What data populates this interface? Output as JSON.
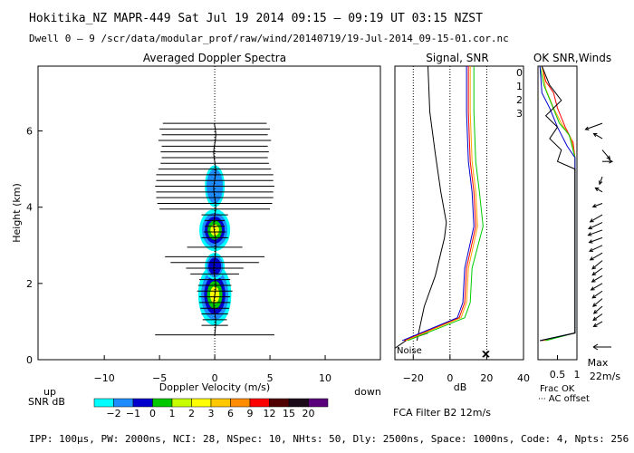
{
  "header": {
    "line1": "Hokitika_NZ   MAPR-449   Sat Jul 19 2014 09:15 — 09:19 UT 03:15 NZST",
    "line2": "Dwell   0 —  9    /scr/data/modular_prof/raw/wind/20140719/19-Jul-2014_09-15-01.cor.nc"
  },
  "footer": {
    "params": "IPP: 100μs,  PW: 2000ns,  NCI:  28,  NSpec: 10,  NHts: 50,  Dly: 2500ns,  Space: 1000ns,  Code: 4,  Npts: 256",
    "filter": "FCA Filter B2 12m/s"
  },
  "colors": {
    "snr_levels": [
      "#00ffff",
      "#1e8cff",
      "#0000cd",
      "#00c800",
      "#c8ff00",
      "#ffff00",
      "#ffc800",
      "#ff8c00",
      "#ff0000",
      "#500000",
      "#1a0a1a",
      "#5a007a"
    ],
    "channels": [
      "#ff0000",
      "#ffa500",
      "#00cc00",
      "#0000cc"
    ]
  },
  "chart_data": [
    {
      "type": "heatmap",
      "title": "Averaged Doppler Spectra",
      "xlabel": "Doppler Velocity (m/s)",
      "ylabel": "Height (km)",
      "xlim": [
        -16,
        15
      ],
      "ylim": [
        0,
        7.7
      ],
      "xticks": [
        "−10",
        "−5",
        "0",
        "5",
        "10"
      ],
      "xtick_values": [
        -10,
        -5,
        0,
        5,
        10
      ],
      "yticks": [
        "0",
        "2",
        "4",
        "6"
      ],
      "ytick_values": [
        0,
        2,
        4,
        6
      ],
      "dir_left": "up",
      "dir_right": "down",
      "colorbar_title": "SNR dB",
      "colorbar_labels": [
        "−2",
        "−1",
        "0",
        "1",
        "2",
        "3",
        "6",
        "9",
        "12",
        "15",
        "20"
      ],
      "spectral_width_bars": [
        {
          "h": 0.65,
          "w": 5.4
        },
        {
          "h": 0.9,
          "w": 1.2
        },
        {
          "h": 1.05,
          "w": 1.1
        },
        {
          "h": 1.2,
          "w": 1.2
        },
        {
          "h": 1.35,
          "w": 1.3
        },
        {
          "h": 1.5,
          "w": 1.4
        },
        {
          "h": 1.65,
          "w": 1.4
        },
        {
          "h": 1.8,
          "w": 1.6
        },
        {
          "h": 1.95,
          "w": 1.5
        },
        {
          "h": 2.1,
          "w": 1.4
        },
        {
          "h": 2.25,
          "w": 2.2
        },
        {
          "h": 2.4,
          "w": 2.6
        },
        {
          "h": 2.55,
          "w": 4.0
        },
        {
          "h": 2.7,
          "w": 4.5
        },
        {
          "h": 2.95,
          "w": 2.5
        },
        {
          "h": 3.2,
          "w": 1.2
        },
        {
          "h": 3.35,
          "w": 1.0
        },
        {
          "h": 3.5,
          "w": 0.9
        },
        {
          "h": 3.65,
          "w": 0.9
        },
        {
          "h": 3.8,
          "w": 1.2
        },
        {
          "h": 3.95,
          "w": 5.0
        },
        {
          "h": 4.1,
          "w": 5.2
        },
        {
          "h": 4.25,
          "w": 5.3
        },
        {
          "h": 4.4,
          "w": 5.3
        },
        {
          "h": 4.55,
          "w": 5.4
        },
        {
          "h": 4.7,
          "w": 5.3
        },
        {
          "h": 4.85,
          "w": 5.3
        },
        {
          "h": 5.0,
          "w": 5.1
        },
        {
          "h": 5.15,
          "w": 4.9
        },
        {
          "h": 5.3,
          "w": 4.8
        },
        {
          "h": 5.45,
          "w": 4.9
        },
        {
          "h": 5.6,
          "w": 4.8
        },
        {
          "h": 5.75,
          "w": 5.1
        },
        {
          "h": 5.9,
          "w": 4.8
        },
        {
          "h": 6.05,
          "w": 5.0
        },
        {
          "h": 6.2,
          "w": 4.7
        }
      ]
    },
    {
      "type": "line",
      "title": "Signal, SNR",
      "xlabel": "dB",
      "xlim": [
        -30,
        40
      ],
      "ylim": [
        0,
        7.7
      ],
      "xticks": [
        "−20",
        "0",
        "20",
        "40"
      ],
      "xtick_values": [
        -20,
        0,
        20,
        40
      ],
      "dotted_lines_x": [
        -20,
        0,
        20
      ],
      "noise_label": "Noise",
      "series": [
        {
          "name": "Noise",
          "color": "#000000",
          "x": [
            -30,
            -24,
            -18,
            -12
          ],
          "y": [
            0.3,
            0.5,
            0.6,
            0.7
          ]
        },
        {
          "name": "Signal",
          "color": "#000000",
          "x": [
            -18,
            -14,
            -8,
            -3,
            -2,
            -5,
            -8,
            -11,
            -12
          ],
          "y": [
            0.5,
            1.4,
            2.2,
            3.2,
            3.6,
            4.4,
            5.4,
            6.5,
            7.7
          ]
        },
        {
          "name": "0",
          "color": "#ff0000",
          "x": [
            -25,
            5,
            8,
            9,
            14,
            13,
            11,
            10,
            10
          ],
          "y": [
            0.5,
            1.1,
            1.5,
            2.4,
            3.5,
            4.4,
            5.2,
            6.5,
            7.7
          ]
        },
        {
          "name": "1",
          "color": "#ffa500",
          "x": [
            -24,
            6,
            9,
            10,
            15,
            14,
            12,
            11,
            11
          ],
          "y": [
            0.5,
            1.1,
            1.5,
            2.4,
            3.5,
            4.4,
            5.2,
            6.5,
            7.7
          ]
        },
        {
          "name": "2",
          "color": "#00cc00",
          "x": [
            -23,
            8,
            11,
            12,
            18,
            16,
            14,
            13,
            13
          ],
          "y": [
            0.5,
            1.1,
            1.5,
            2.4,
            3.5,
            4.4,
            5.2,
            6.5,
            7.7
          ]
        },
        {
          "name": "3",
          "color": "#0000cc",
          "x": [
            -26,
            4,
            7,
            8,
            13,
            12,
            10,
            9,
            9
          ],
          "y": [
            0.5,
            1.1,
            1.5,
            2.4,
            3.5,
            4.4,
            5.2,
            6.5,
            7.7
          ]
        }
      ],
      "marker_x": "×"
    },
    {
      "type": "line",
      "title": "OK SNR,Winds",
      "xlabel": "Frac OK",
      "xlim": [
        0,
        1
      ],
      "ylim": [
        0,
        7.7
      ],
      "xticks": [
        "0.5",
        "1"
      ],
      "xtick_values": [
        0.5,
        1
      ],
      "legend": [
        "0",
        "1",
        "2",
        "3"
      ],
      "note": "AC offset",
      "max_label": "Max",
      "max_value": "22m/s",
      "frac_ok_lines": [
        {
          "name": "0",
          "color": "#ff0000",
          "x": [
            0.1,
            0.95,
            0.95,
            0.9,
            0.7,
            0.5,
            0.4,
            0.2,
            0.1
          ],
          "y": [
            0.5,
            0.7,
            5.3,
            5.7,
            6.1,
            6.6,
            7.0,
            7.3,
            7.7
          ]
        },
        {
          "name": "1",
          "color": "#ffa500",
          "x": [
            0.15,
            0.95,
            0.95,
            0.85,
            0.6,
            0.4,
            0.2,
            0.1
          ],
          "y": [
            0.5,
            0.7,
            5.3,
            5.8,
            6.2,
            6.6,
            7.1,
            7.7
          ]
        },
        {
          "name": "2",
          "color": "#00cc00",
          "x": [
            0.2,
            0.95,
            0.95,
            0.8,
            0.55,
            0.35,
            0.15,
            0.05
          ],
          "y": [
            0.5,
            0.7,
            5.3,
            5.9,
            6.2,
            6.7,
            7.2,
            7.7
          ]
        },
        {
          "name": "3",
          "color": "#0000cc",
          "x": [
            0.05,
            0.95,
            0.95,
            0.75,
            0.5,
            0.3,
            0.1,
            0.05
          ],
          "y": [
            0.5,
            0.7,
            5.3,
            5.6,
            6.1,
            6.6,
            7.0,
            7.7
          ]
        },
        {
          "name": "AC",
          "color": "#000000",
          "x": [
            0.05,
            0.95,
            0.95,
            0.5,
            0.6,
            0.3,
            0.5,
            0.2,
            0.6,
            0.3,
            0.1
          ],
          "y": [
            0.5,
            0.7,
            5.0,
            5.2,
            5.5,
            5.8,
            6.1,
            6.4,
            6.8,
            7.2,
            7.7
          ]
        }
      ],
      "wind_barbs": [
        {
          "h": 1.0,
          "dir": 240,
          "spd": 0.5
        },
        {
          "h": 1.2,
          "dir": 235,
          "spd": 0.55
        },
        {
          "h": 1.4,
          "dir": 230,
          "spd": 0.55
        },
        {
          "h": 1.6,
          "dir": 230,
          "spd": 0.6
        },
        {
          "h": 1.8,
          "dir": 235,
          "spd": 0.6
        },
        {
          "h": 2.0,
          "dir": 240,
          "spd": 0.65
        },
        {
          "h": 2.2,
          "dir": 240,
          "spd": 0.6
        },
        {
          "h": 2.4,
          "dir": 235,
          "spd": 0.6
        },
        {
          "h": 2.6,
          "dir": 230,
          "spd": 0.65
        },
        {
          "h": 2.8,
          "dir": 240,
          "spd": 0.7
        },
        {
          "h": 3.0,
          "dir": 245,
          "spd": 0.7
        },
        {
          "h": 3.2,
          "dir": 250,
          "spd": 0.7
        },
        {
          "h": 3.4,
          "dir": 250,
          "spd": 0.75
        },
        {
          "h": 3.6,
          "dir": 245,
          "spd": 0.75
        },
        {
          "h": 3.8,
          "dir": 240,
          "spd": 0.7
        },
        {
          "h": 4.1,
          "dir": 250,
          "spd": 0.5
        },
        {
          "h": 4.4,
          "dir": 300,
          "spd": 0.4
        },
        {
          "h": 4.8,
          "dir": 200,
          "spd": 0.4
        },
        {
          "h": 5.2,
          "dir": 90,
          "spd": 0.5
        },
        {
          "h": 5.5,
          "dir": 140,
          "spd": 0.6
        },
        {
          "h": 5.8,
          "dir": 300,
          "spd": 0.5
        },
        {
          "h": 6.2,
          "dir": 250,
          "spd": 0.9
        }
      ]
    }
  ]
}
